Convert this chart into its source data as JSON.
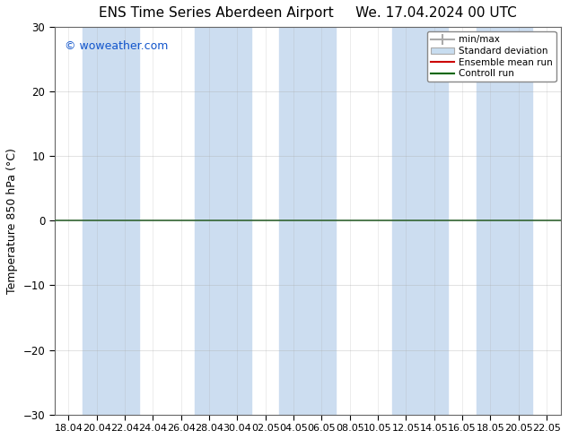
{
  "title_left": "ENS Time Series Aberdeen Airport",
  "title_right": "We. 17.04.2024 00 UTC",
  "ylabel": "Temperature 850 hPa (°C)",
  "ylim": [
    -30,
    30
  ],
  "yticks": [
    -30,
    -20,
    -10,
    0,
    10,
    20,
    30
  ],
  "x_tick_labels": [
    "18.04",
    "20.04",
    "22.04",
    "24.04",
    "26.04",
    "28.04",
    "30.04",
    "02.05",
    "04.05",
    "06.05",
    "08.05",
    "10.05",
    "12.05",
    "14.05",
    "16.05",
    "18.05",
    "20.05",
    "22.05"
  ],
  "watermark": "© woweather.com",
  "legend_entries": [
    "min/max",
    "Standard deviation",
    "Ensemble mean run",
    "Controll run"
  ],
  "bg_color": "#ffffff",
  "plot_bg_color": "#ffffff",
  "band_color": "#ccddf0",
  "band_x_starts": [
    1,
    5,
    9,
    15,
    17
  ],
  "band_widths": [
    1,
    1,
    1,
    1,
    1
  ],
  "hline_y": 0,
  "hline_color": "#336633",
  "grid_color": "#aaaaaa",
  "minmax_color": "#aaaaaa",
  "std_face_color": "#c8ddf0",
  "std_edge_color": "#aaaaaa",
  "ens_color": "#cc0000",
  "ctrl_color": "#006600"
}
